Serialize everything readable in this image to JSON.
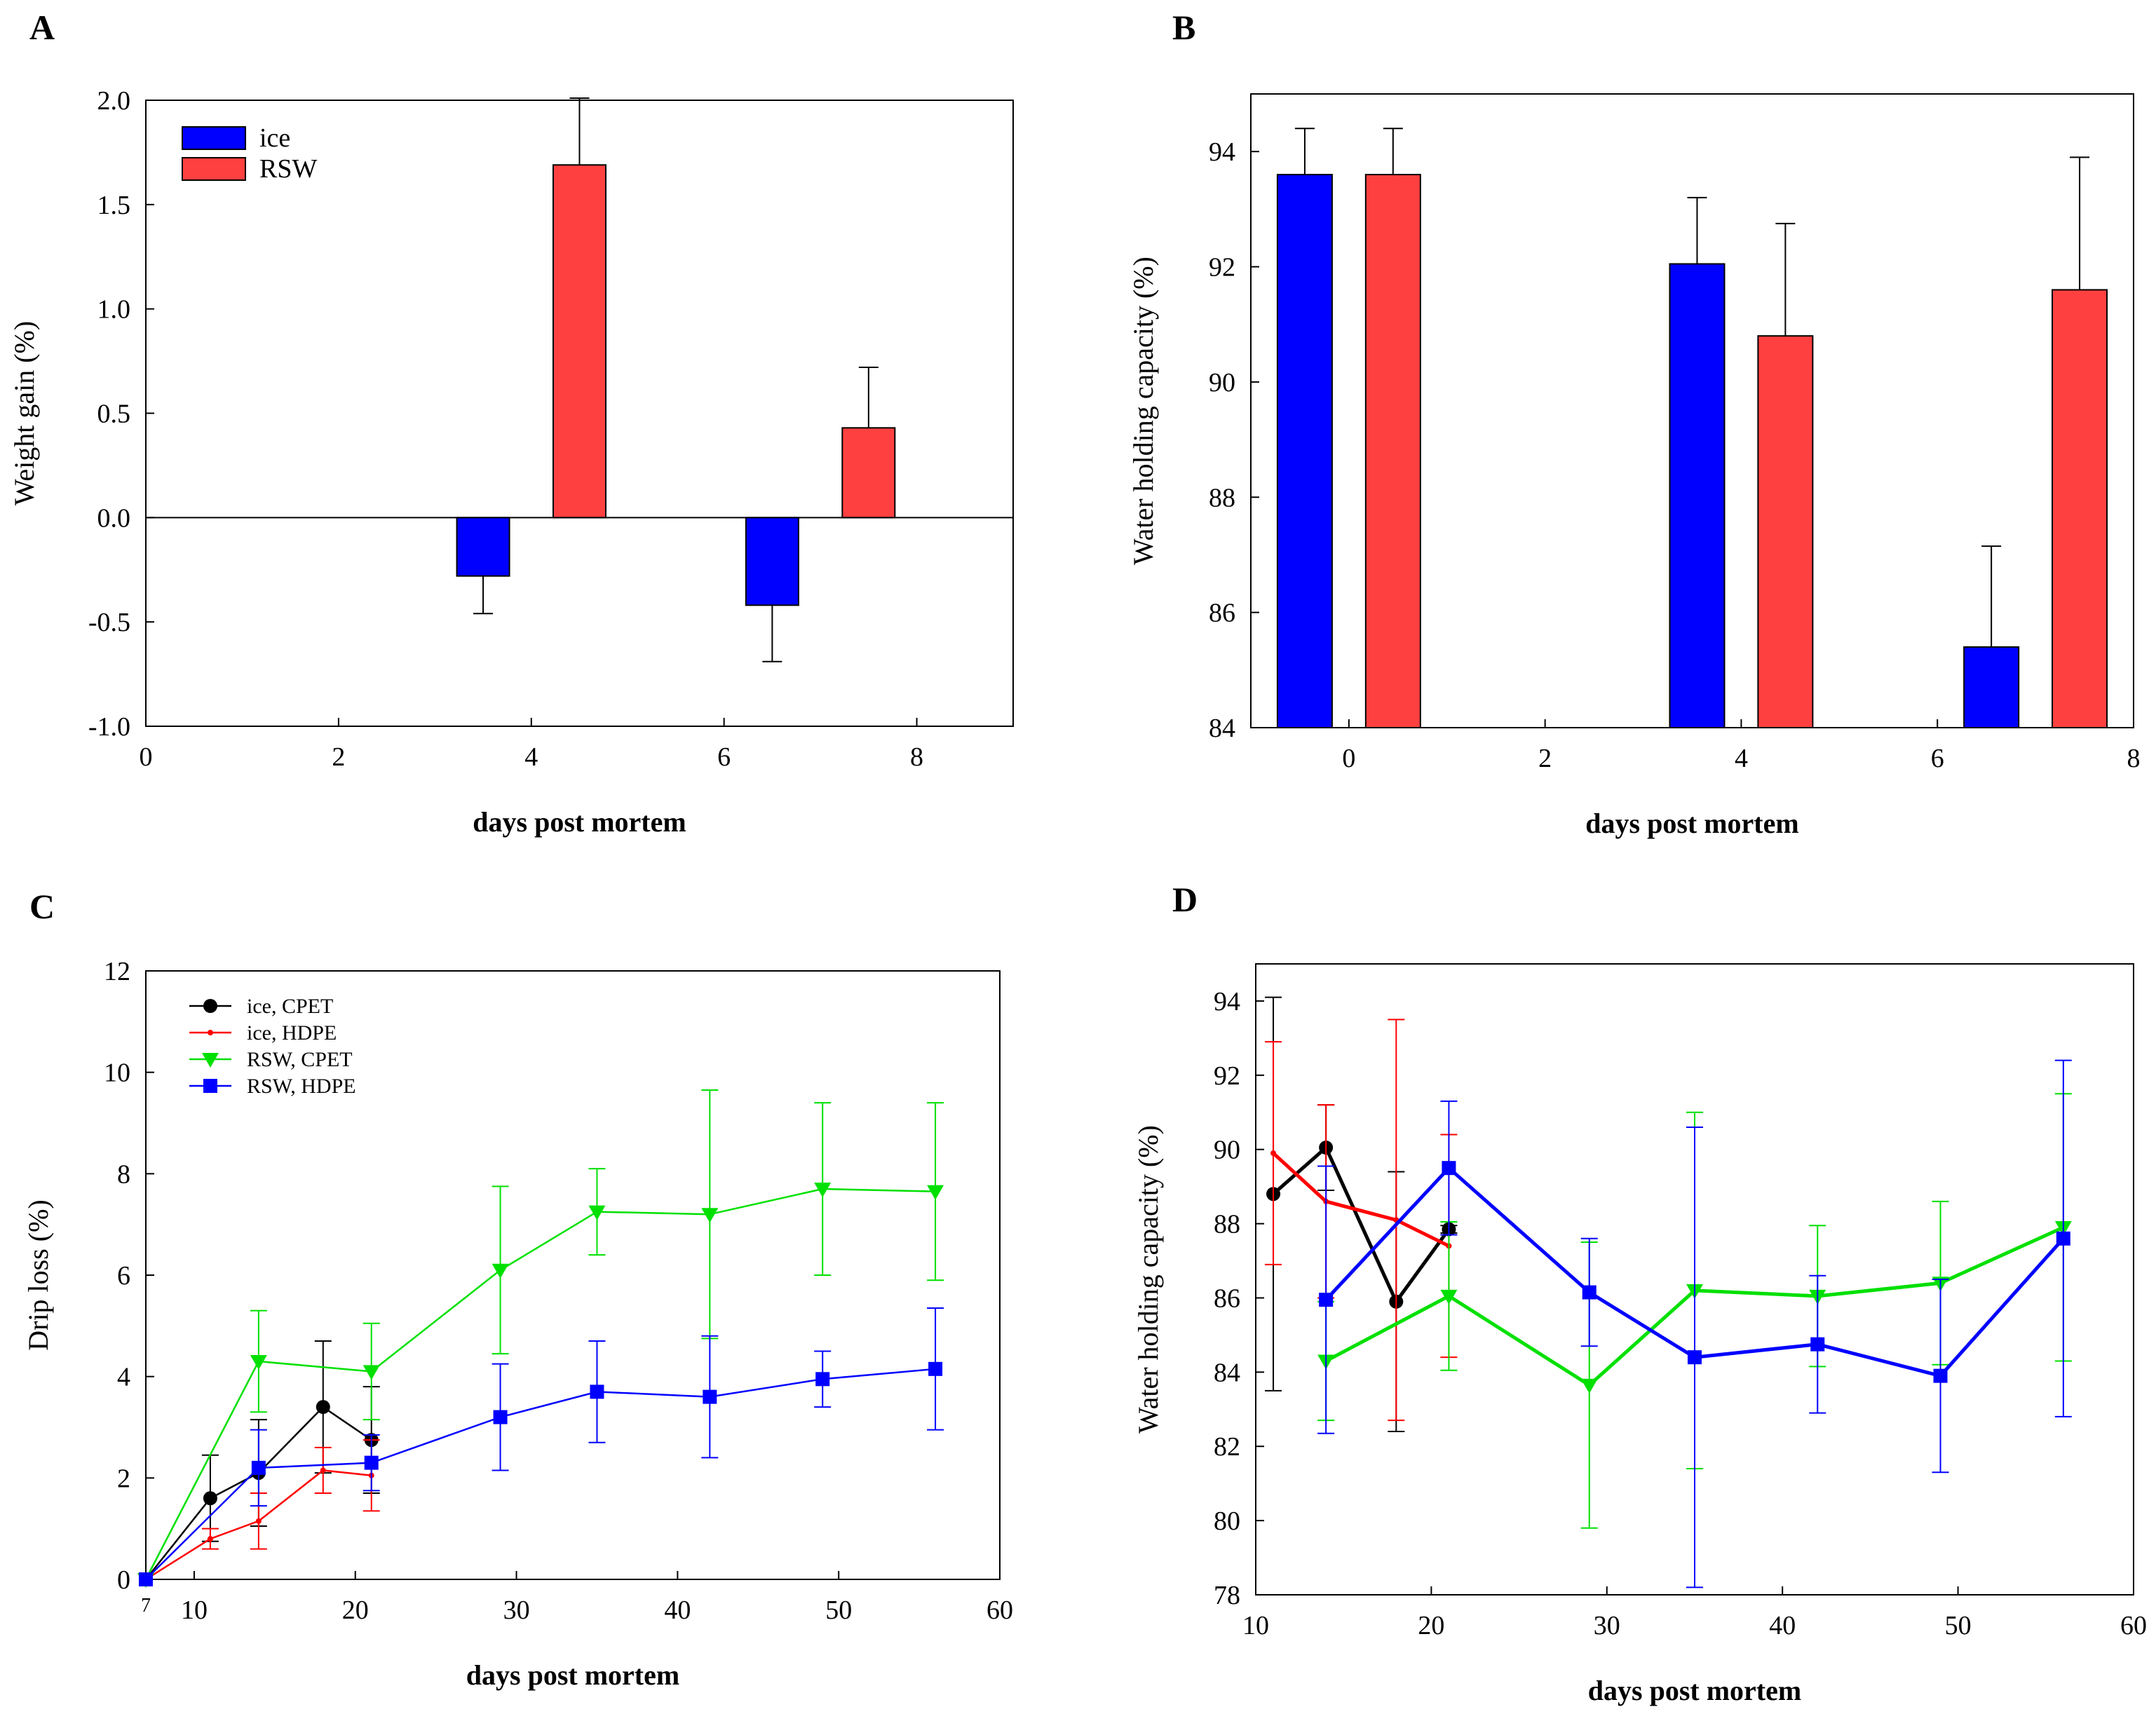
{
  "chart_data": [
    {
      "panel": "A",
      "type": "bar",
      "xlabel": "days post mortem",
      "ylabel": "Weight gain (%)",
      "xlim": [
        0,
        9
      ],
      "ylim": [
        -1.0,
        2.0
      ],
      "xticks": [
        "0",
        "2",
        "4",
        "6",
        "8"
      ],
      "yticks": [
        "-1.0",
        "-0.5",
        "0.0",
        "0.5",
        "1.0",
        "1.5",
        "2.0"
      ],
      "baseline": 0,
      "legend": "top-left",
      "series": [
        {
          "name": "ice",
          "color": "#0000ff",
          "x": [
            3.5,
            6.5
          ],
          "values": [
            -0.28,
            -0.42
          ],
          "errors": [
            0.18,
            0.27
          ]
        },
        {
          "name": "RSW",
          "color": "#ff4040",
          "x": [
            4.5,
            7.5
          ],
          "values": [
            1.69,
            0.43
          ],
          "errors": [
            0.32,
            0.29
          ]
        }
      ]
    },
    {
      "panel": "B",
      "type": "bar",
      "xlabel": "days post mortem",
      "ylabel": "Water holding capacity (%)",
      "xlim": [
        -1,
        8
      ],
      "ylim": [
        84,
        95
      ],
      "xticks": [
        "0",
        "2",
        "4",
        "6",
        "8"
      ],
      "yticks": [
        "84",
        "86",
        "88",
        "90",
        "92",
        "94"
      ],
      "baseline": 84,
      "series": [
        {
          "name": "ice",
          "color": "#0000ff",
          "x": [
            -0.45,
            3.55,
            6.55
          ],
          "values": [
            93.6,
            92.05,
            85.4
          ],
          "errors": [
            0.8,
            1.15,
            1.75
          ]
        },
        {
          "name": "RSW",
          "color": "#ff4040",
          "x": [
            0.45,
            4.45,
            7.45
          ],
          "values": [
            93.6,
            90.8,
            91.6
          ],
          "errors": [
            0.8,
            1.95,
            2.3
          ]
        }
      ]
    },
    {
      "panel": "C",
      "type": "line",
      "xlabel": "days post mortem",
      "ylabel": "Drip loss (%)",
      "xlim": [
        7,
        60
      ],
      "ylim": [
        0,
        12
      ],
      "xticks": [
        "7",
        "10",
        "20",
        "30",
        "40",
        "50",
        "60"
      ],
      "yticks": [
        "0",
        "2",
        "4",
        "6",
        "8",
        "10",
        "12"
      ],
      "legend": "top-left",
      "series": [
        {
          "name": "ice, CPET",
          "color": "#000000",
          "marker": "circle",
          "x": [
            7,
            11,
            14,
            18,
            21
          ],
          "values": [
            0,
            1.6,
            2.1,
            3.4,
            2.75
          ],
          "errors": [
            0,
            0.85,
            1.05,
            1.3,
            1.05
          ]
        },
        {
          "name": "ice, HDPE",
          "color": "#ff0000",
          "marker": "dot",
          "x": [
            7,
            11,
            14,
            18,
            21
          ],
          "values": [
            0,
            0.8,
            1.15,
            2.15,
            2.05
          ],
          "errors": [
            0,
            0.2,
            0.55,
            0.45,
            0.7
          ]
        },
        {
          "name": "RSW, CPET",
          "color": "#00e000",
          "marker": "triangle-down",
          "x": [
            7,
            14,
            21,
            29,
            35,
            42,
            49,
            56
          ],
          "values": [
            0,
            4.3,
            4.1,
            6.1,
            7.25,
            7.2,
            7.7,
            7.65
          ],
          "errors": [
            0,
            1.0,
            0.95,
            1.65,
            0.85,
            2.45,
            1.7,
            1.75
          ]
        },
        {
          "name": "RSW, HDPE",
          "color": "#0000ff",
          "marker": "square",
          "x": [
            7,
            14,
            21,
            29,
            35,
            42,
            49,
            56
          ],
          "values": [
            0,
            2.2,
            2.3,
            3.2,
            3.7,
            3.6,
            3.95,
            4.15
          ],
          "errors": [
            0,
            0.75,
            0.55,
            1.05,
            1.0,
            1.2,
            0.55,
            1.2
          ]
        }
      ]
    },
    {
      "panel": "D",
      "type": "line",
      "xlabel": "days post mortem",
      "ylabel": "Water holding capacity (%)",
      "xlim": [
        10,
        60
      ],
      "ylim": [
        78,
        95
      ],
      "xticks": [
        "10",
        "20",
        "30",
        "40",
        "50",
        "60"
      ],
      "yticks": [
        "78",
        "80",
        "82",
        "84",
        "86",
        "88",
        "90",
        "92",
        "94"
      ],
      "series": [
        {
          "name": "ice, CPET",
          "color": "#000000",
          "marker": "circle",
          "x": [
            11,
            14,
            18,
            21
          ],
          "values": [
            88.8,
            90.05,
            85.9,
            87.85
          ],
          "errors": [
            5.3,
            1.15,
            3.5,
            0.1
          ]
        },
        {
          "name": "ice, HDPE",
          "color": "#ff0000",
          "marker": "dot",
          "x": [
            11,
            14,
            18,
            21
          ],
          "values": [
            89.9,
            88.6,
            88.1,
            87.4
          ],
          "errors": [
            3.0,
            2.6,
            5.4,
            3.0
          ]
        },
        {
          "name": "RSW, CPET",
          "color": "#00e000",
          "marker": "triangle-down",
          "x": [
            14,
            21,
            29,
            35,
            42,
            49,
            56
          ],
          "values": [
            84.3,
            86.05,
            83.65,
            86.2,
            86.05,
            86.4,
            87.9
          ],
          "errors": [
            1.6,
            2.0,
            3.85,
            4.8,
            1.9,
            2.2,
            3.6
          ]
        },
        {
          "name": "RSW, HDPE",
          "color": "#0000ff",
          "marker": "square",
          "x": [
            14,
            21,
            29,
            35,
            42,
            49,
            56
          ],
          "values": [
            85.95,
            89.5,
            86.15,
            84.4,
            84.75,
            83.9,
            87.6
          ],
          "errors": [
            3.6,
            1.8,
            1.45,
            6.2,
            1.85,
            2.6,
            4.8
          ]
        }
      ]
    }
  ]
}
